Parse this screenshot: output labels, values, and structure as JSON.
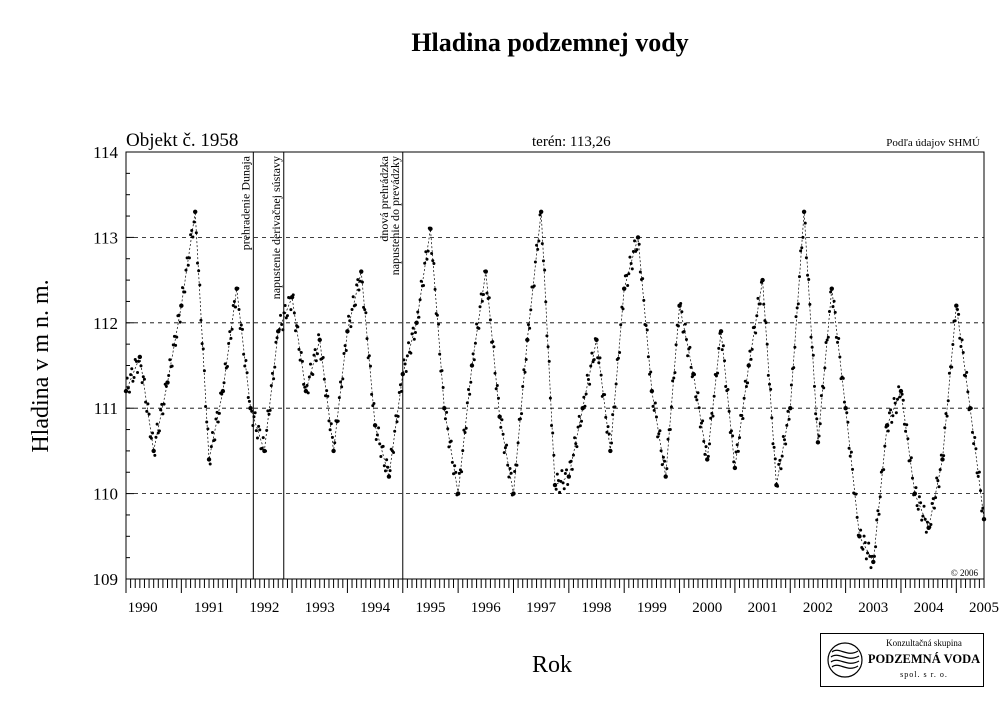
{
  "chart_data": {
    "type": "scatter",
    "title": "Hladina podzemnej vody",
    "object_label": "Objekt č. 1958",
    "terrain_label": "terén: 113,26",
    "source_label": "Podľa údajov SHMÚ",
    "copyright": "© 2006",
    "xlabel": "Rok",
    "ylabel": "Hladina v m n. m.",
    "xlim": [
      1990.0,
      2005.5
    ],
    "ylim": [
      109,
      114
    ],
    "y_ticks": [
      "109",
      "110",
      "111",
      "112",
      "113",
      "114"
    ],
    "x_tick_labels": [
      "1990",
      "1991",
      "1992",
      "1993",
      "1994",
      "1995",
      "1996",
      "1997",
      "1998",
      "1999",
      "2000",
      "2001",
      "2002",
      "2003",
      "2004",
      "2005"
    ],
    "grid": "horizontal dashed",
    "events": [
      {
        "x": 1992.3,
        "label": "prehradenie Dunaja"
      },
      {
        "x": 1992.85,
        "label": "napustenie derivačnej sústavy"
      },
      {
        "x": 1995.0,
        "label": "dnová prehrádzka; napustenie do prevádzky"
      }
    ],
    "series": [
      {
        "x": [
          1990.0,
          1990.25,
          1990.5,
          1990.75,
          1991.0,
          1991.25,
          1991.5,
          1991.75,
          1992.0,
          1992.25,
          1992.5,
          1992.75,
          1993.0,
          1993.25,
          1993.5,
          1993.75,
          1994.0,
          1994.25,
          1994.5,
          1994.75,
          1995.0,
          1995.25,
          1995.5,
          1995.75,
          1996.0,
          1996.25,
          1996.5,
          1996.75,
          1997.0,
          1997.25,
          1997.5,
          1997.75,
          1998.0,
          1998.25,
          1998.5,
          1998.75,
          1999.0,
          1999.25,
          1999.5,
          1999.75,
          2000.0,
          2000.25,
          2000.5,
          2000.75,
          2001.0,
          2001.25,
          2001.5,
          2001.75,
          2002.0,
          2002.25,
          2002.5,
          2002.75,
          2003.0,
          2003.25,
          2003.5,
          2003.75,
          2004.0,
          2004.25,
          2004.5,
          2004.75,
          2005.0,
          2005.25,
          2005.5
        ],
        "y": [
          111.2,
          111.6,
          110.5,
          111.3,
          112.2,
          113.3,
          110.4,
          111.2,
          112.4,
          111.0,
          110.5,
          111.9,
          112.3,
          111.2,
          111.8,
          110.5,
          111.9,
          112.6,
          110.8,
          110.2,
          111.4,
          112.0,
          113.1,
          111.0,
          110.0,
          111.5,
          112.6,
          110.9,
          110.0,
          111.8,
          113.3,
          110.1,
          110.2,
          111.0,
          111.8,
          110.5,
          112.4,
          113.0,
          111.2,
          110.2,
          112.2,
          111.4,
          110.4,
          111.9,
          110.3,
          111.5,
          112.5,
          110.1,
          111.0,
          113.3,
          110.6,
          112.4,
          111.0,
          109.5,
          109.2,
          110.8,
          111.2,
          110.0,
          109.6,
          110.4,
          112.2,
          111.0,
          109.7
        ]
      }
    ]
  },
  "logo": {
    "top": "Konzultačná skupina",
    "main": "PODZEMNÁ VODA",
    "bottom": "spol. s r. o."
  }
}
